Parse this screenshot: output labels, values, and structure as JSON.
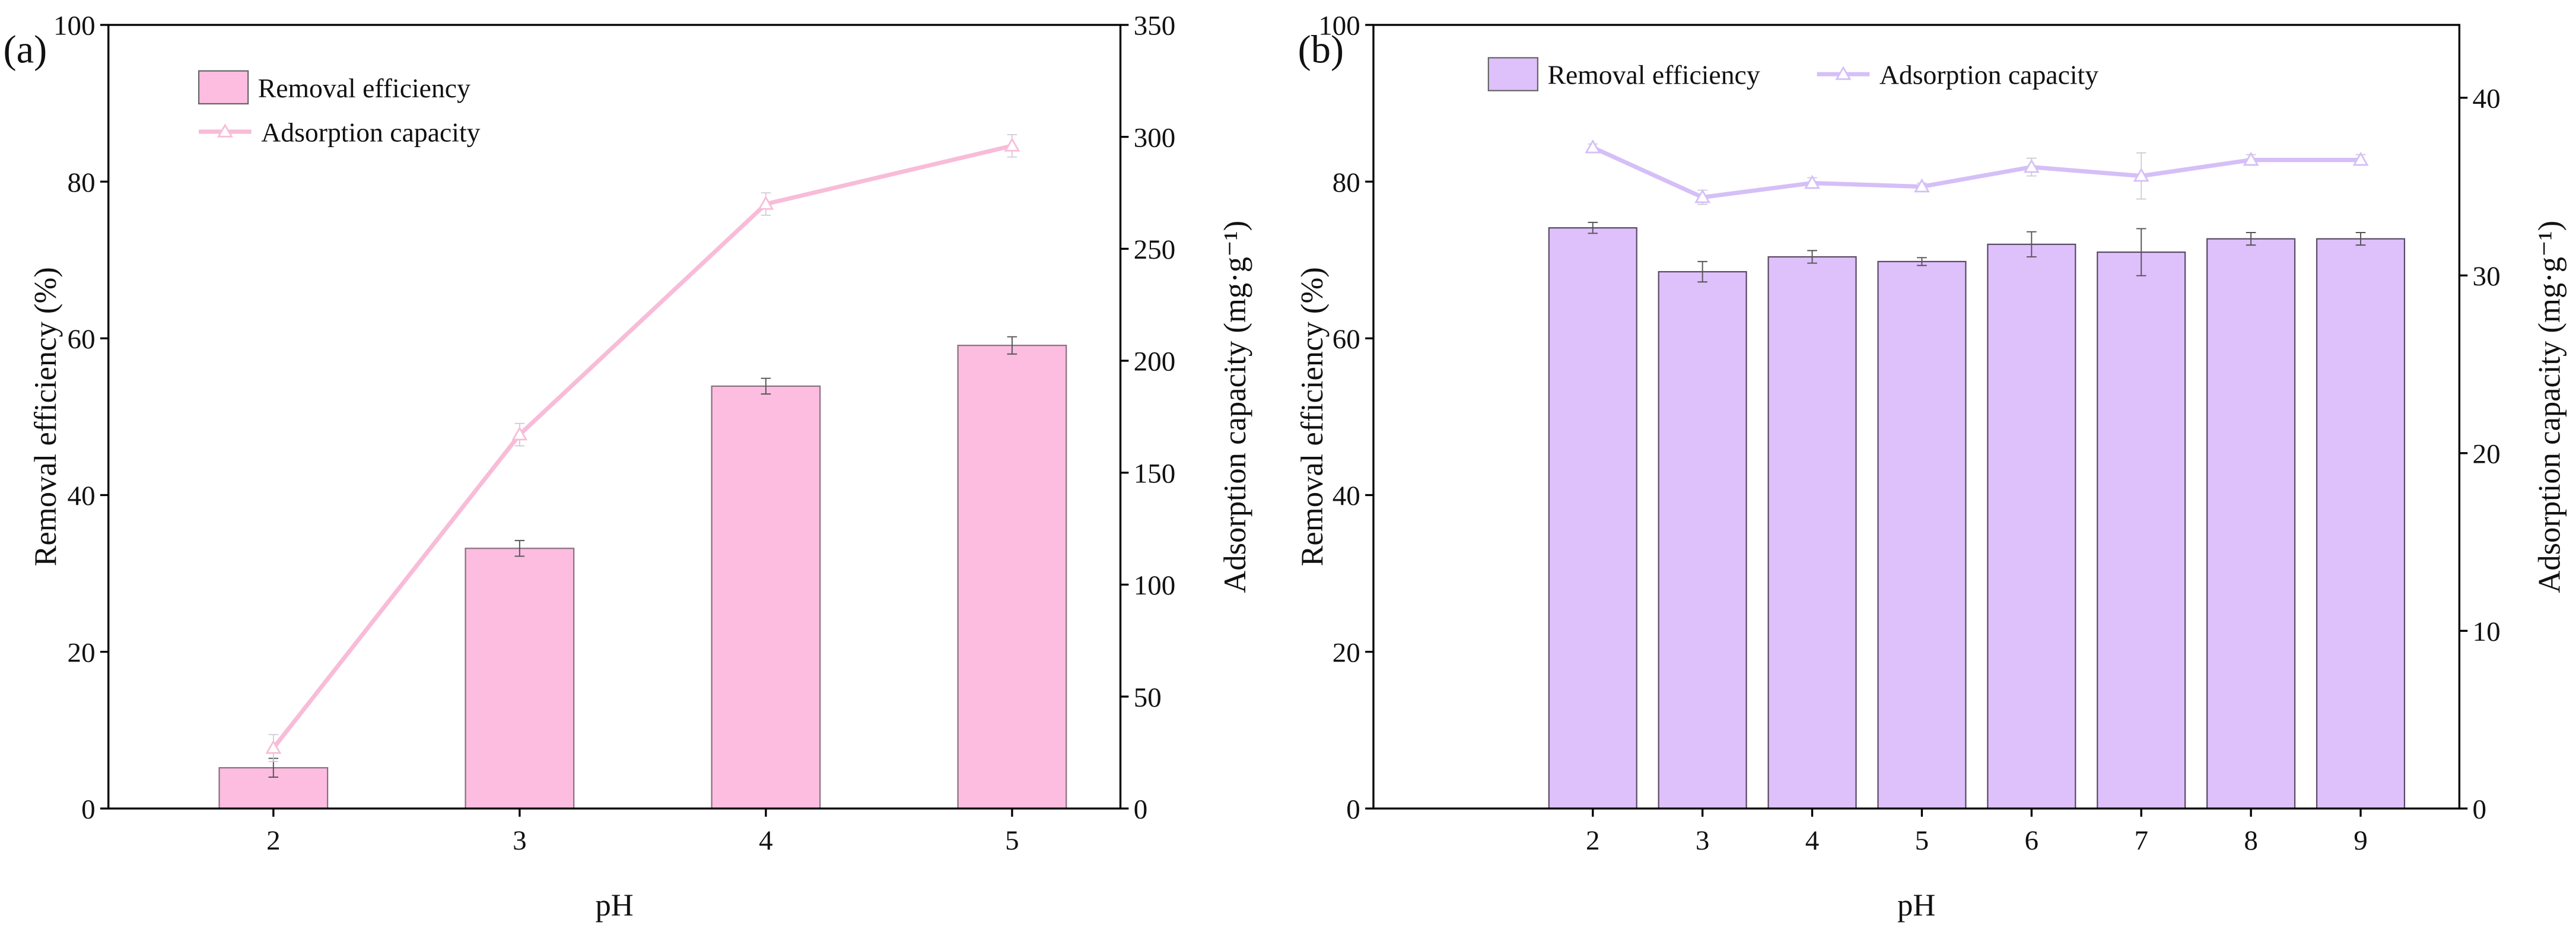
{
  "chart_data": [
    {
      "type": "bar+line",
      "panel_label": "(a)",
      "xlabel": "pH",
      "ylabel_left": "Removal efficiency (%)",
      "ylabel_right": "Adsorption capacity (mg·g⁻¹)",
      "categories": [
        "2",
        "3",
        "4",
        "5"
      ],
      "x": [
        2,
        3,
        4,
        5
      ],
      "xlim": [
        1.33,
        5.44
      ],
      "ylim_left": [
        0,
        100
      ],
      "yticks_left": [
        0,
        20,
        40,
        60,
        80,
        100
      ],
      "ylim_right": [
        0,
        350
      ],
      "yticks_right": [
        0,
        50,
        100,
        150,
        200,
        250,
        300,
        350
      ],
      "bar_width": 0.44,
      "legend_position": "top-left",
      "legend_layout": "column",
      "series": [
        {
          "name": "Removal efficiency",
          "kind": "bar",
          "axis": "left",
          "color": "#fcbde0",
          "edge": "#8a7080",
          "values": [
            5.2,
            33.2,
            53.9,
            59.1
          ],
          "errors": [
            1.2,
            1.0,
            1.0,
            1.1
          ]
        },
        {
          "name": "Adsorption capacity",
          "kind": "line",
          "axis": "right",
          "color": "#f8bcd8",
          "values": [
            27,
            167,
            270,
            296
          ],
          "errors": [
            6,
            5,
            5,
            5
          ]
        }
      ]
    },
    {
      "type": "bar+line",
      "panel_label": "(b)",
      "xlabel": "pH",
      "ylabel_left": "Removal efficiency (%)",
      "ylabel_right": "Adsorption capacity (mg·g⁻¹)",
      "categories": [
        "2",
        "3",
        "4",
        "5",
        "6",
        "7",
        "8",
        "9"
      ],
      "x": [
        2,
        3,
        4,
        5,
        6,
        7,
        8,
        9
      ],
      "xlim": [
        0.0,
        9.9
      ],
      "ylim_left": [
        0,
        100
      ],
      "yticks_left": [
        0,
        20,
        40,
        60,
        80,
        100
      ],
      "ylim_right": [
        0,
        44.1
      ],
      "yticks_right": [
        0,
        10,
        20,
        30,
        40
      ],
      "bar_width": 0.8,
      "legend_position": "top-left",
      "legend_layout": "row",
      "series": [
        {
          "name": "Removal efficiency",
          "kind": "bar",
          "axis": "left",
          "color": "#dec0fb",
          "edge": "#5a4a66",
          "values": [
            74.1,
            68.5,
            70.4,
            69.8,
            72.0,
            71.0,
            72.7,
            72.7
          ],
          "errors": [
            0.7,
            1.3,
            0.8,
            0.5,
            1.6,
            3.0,
            0.8,
            0.8
          ]
        },
        {
          "name": "Adsorption capacity",
          "kind": "line",
          "axis": "right",
          "color": "#d5bff7",
          "values": [
            37.2,
            34.4,
            35.2,
            35.0,
            36.1,
            35.6,
            36.5,
            36.5
          ],
          "errors": [
            0.2,
            0.4,
            0.3,
            0.2,
            0.5,
            1.3,
            0.3,
            0.3
          ]
        }
      ]
    }
  ]
}
